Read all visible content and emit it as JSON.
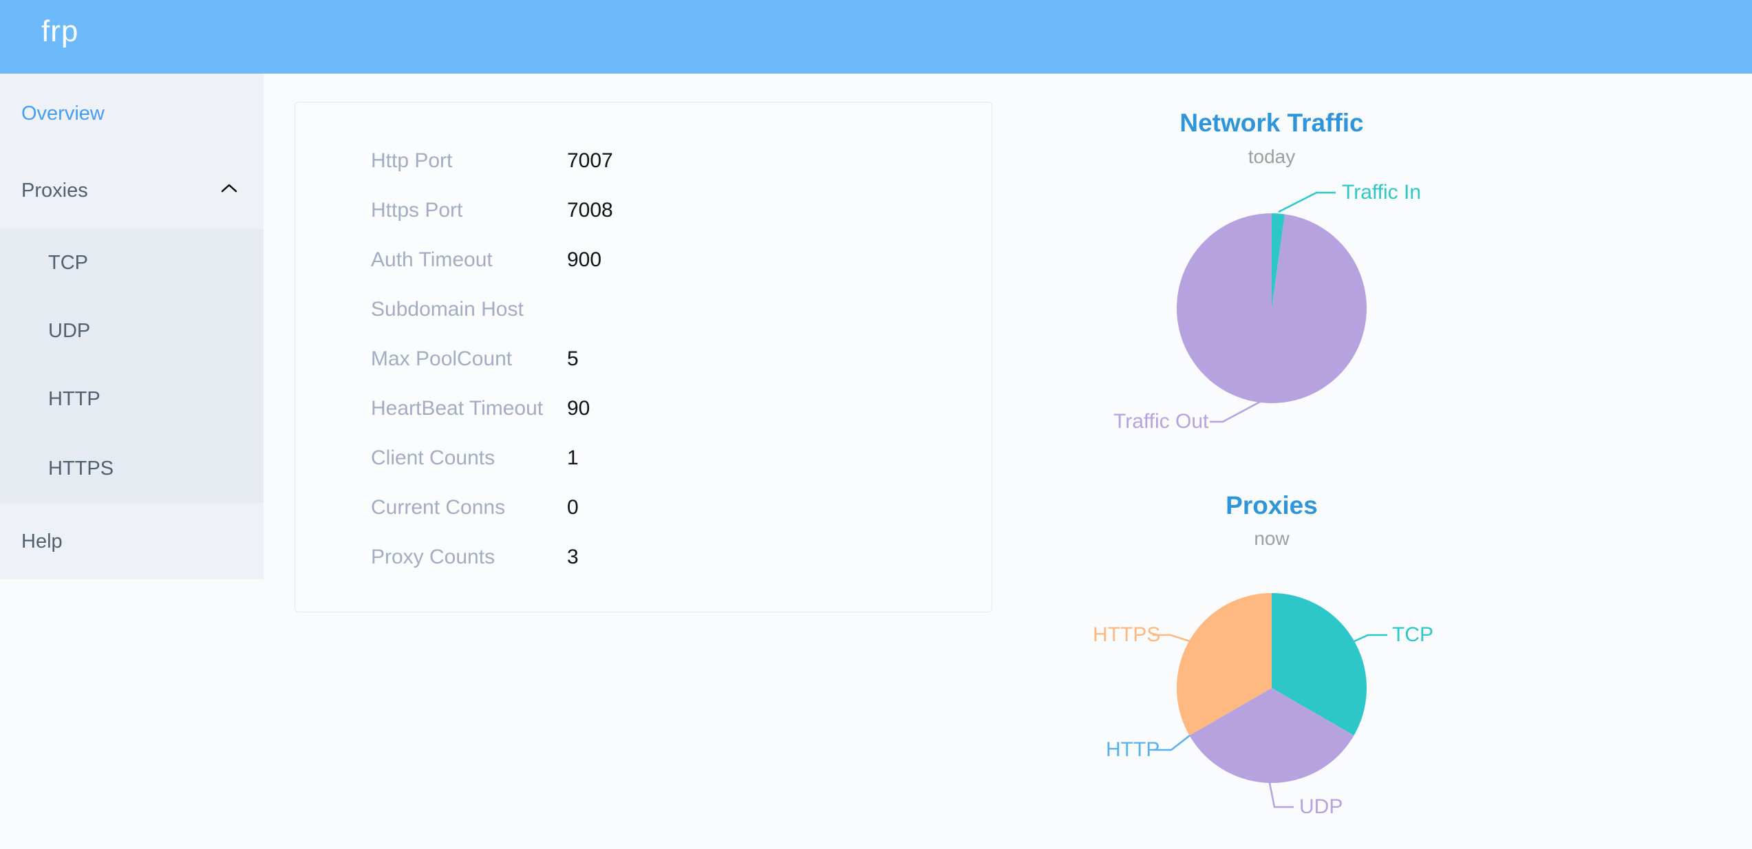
{
  "header": {
    "logo": "frp"
  },
  "sidebar": {
    "items": [
      {
        "label": "Overview",
        "active": true
      },
      {
        "label": "Proxies",
        "expanded": true
      },
      {
        "label": "TCP"
      },
      {
        "label": "UDP"
      },
      {
        "label": "HTTP"
      },
      {
        "label": "HTTPS"
      },
      {
        "label": "Help"
      }
    ]
  },
  "overview": {
    "rows": [
      {
        "label": "Http Port",
        "value": "7007"
      },
      {
        "label": "Https Port",
        "value": "7008"
      },
      {
        "label": "Auth Timeout",
        "value": "900"
      },
      {
        "label": "Subdomain Host",
        "value": ""
      },
      {
        "label": "Max PoolCount",
        "value": "5"
      },
      {
        "label": "HeartBeat Timeout",
        "value": "90"
      },
      {
        "label": "Client Counts",
        "value": "1"
      },
      {
        "label": "Current Conns",
        "value": "0"
      },
      {
        "label": "Proxy Counts",
        "value": "3"
      }
    ]
  },
  "chart_data": [
    {
      "type": "pie",
      "title": "Network Traffic",
      "subtitle": "today",
      "unit": "percent (estimated from slice angles; byte values not shown on screen)",
      "legend_position": "callout-labels",
      "series": [
        {
          "name": "Traffic In",
          "value": 2.2,
          "color": "#2ec7c9"
        },
        {
          "name": "Traffic Out",
          "value": 97.8,
          "color": "#b6a2de"
        }
      ]
    },
    {
      "type": "pie",
      "title": "Proxies",
      "subtitle": "now",
      "unit": "proxy count",
      "legend_position": "callout-labels",
      "series": [
        {
          "name": "TCP",
          "value": 1,
          "color": "#2ec7c9"
        },
        {
          "name": "UDP",
          "value": 1,
          "color": "#b6a2de"
        },
        {
          "name": "HTTP",
          "value": 0,
          "color": "#5ab1ef"
        },
        {
          "name": "HTTPS",
          "value": 1,
          "color": "#ffb980"
        }
      ]
    }
  ],
  "colors": {
    "header_bg": "#6cbafa",
    "sidebar_bg": "#eef1f6",
    "submenu_bg": "#e6eaf1",
    "sidebar_text": "#51606e",
    "active_link": "#459df5",
    "card_label": "#a2adc3",
    "card_value": "#111111",
    "chart_title": "#2e95db",
    "chart_subtitle": "#9e9e9e"
  }
}
